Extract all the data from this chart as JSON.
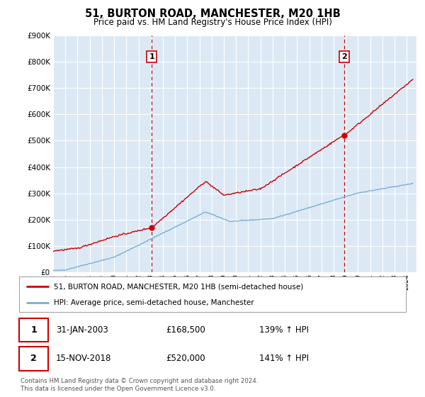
{
  "title": "51, BURTON ROAD, MANCHESTER, M20 1HB",
  "subtitle": "Price paid vs. HM Land Registry's House Price Index (HPI)",
  "ylim": [
    0,
    900000
  ],
  "xlim_start": 1995,
  "xlim_end": 2024.8,
  "marker1_date": 2003.08,
  "marker1_price": 168500,
  "marker1_label": "1",
  "marker2_date": 2018.88,
  "marker2_price": 520000,
  "marker2_label": "2",
  "legend_line1": "51, BURTON ROAD, MANCHESTER, M20 1HB (semi-detached house)",
  "legend_line2": "HPI: Average price, semi-detached house, Manchester",
  "note1_date": "31-JAN-2003",
  "note1_price": "£168,500",
  "note1_hpi": "139% ↑ HPI",
  "note2_date": "15-NOV-2018",
  "note2_price": "£520,000",
  "note2_hpi": "141% ↑ HPI",
  "footer": "Contains HM Land Registry data © Crown copyright and database right 2024.\nThis data is licensed under the Open Government Licence v3.0.",
  "bg_color": "#dce9f5",
  "grid_color": "#ffffff",
  "line_color_red": "#cc0000",
  "line_color_blue": "#7bafd4",
  "vline_color": "#cc0000"
}
